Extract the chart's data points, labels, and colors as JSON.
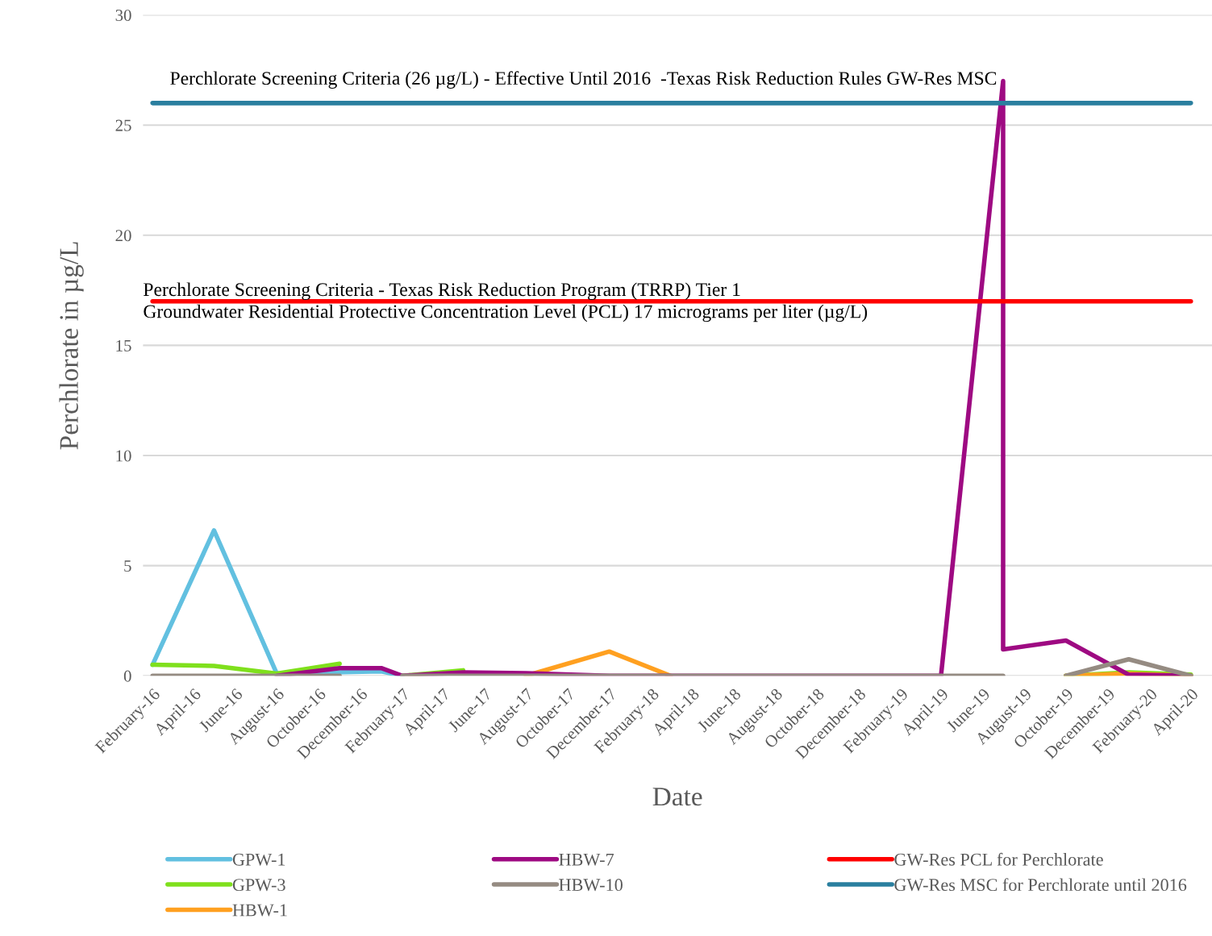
{
  "chart_data": {
    "type": "line",
    "xlabel": "Date",
    "ylabel": "Perchlorate in µg/L",
    "xlim": [
      "2016-01-18",
      "2020-05-02"
    ],
    "ylim": [
      0,
      30
    ],
    "yticks": [
      0,
      5,
      10,
      15,
      20,
      25,
      30
    ],
    "xticks": [
      {
        "value": "2016-02",
        "label": "February-16"
      },
      {
        "value": "2016-04",
        "label": "April-16"
      },
      {
        "value": "2016-06",
        "label": "June-16"
      },
      {
        "value": "2016-08",
        "label": "August-16"
      },
      {
        "value": "2016-10",
        "label": "October-16"
      },
      {
        "value": "2016-12",
        "label": "December-16"
      },
      {
        "value": "2017-02",
        "label": "February-17"
      },
      {
        "value": "2017-04",
        "label": "April-17"
      },
      {
        "value": "2017-06",
        "label": "June-17"
      },
      {
        "value": "2017-08",
        "label": "August-17"
      },
      {
        "value": "2017-10",
        "label": "October-17"
      },
      {
        "value": "2017-12",
        "label": "December-17"
      },
      {
        "value": "2018-02",
        "label": "February-18"
      },
      {
        "value": "2018-04",
        "label": "April-18"
      },
      {
        "value": "2018-06",
        "label": "June-18"
      },
      {
        "value": "2018-08",
        "label": "August-18"
      },
      {
        "value": "2018-10",
        "label": "October-18"
      },
      {
        "value": "2018-12",
        "label": "December-18"
      },
      {
        "value": "2019-02",
        "label": "February-19"
      },
      {
        "value": "2019-04",
        "label": "April-19"
      },
      {
        "value": "2019-06",
        "label": "June-19"
      },
      {
        "value": "2019-08",
        "label": "August-19"
      },
      {
        "value": "2019-10",
        "label": "October-19"
      },
      {
        "value": "2019-12",
        "label": "December-19"
      },
      {
        "value": "2020-02",
        "label": "February-20"
      },
      {
        "value": "2020-04",
        "label": "April-20"
      }
    ],
    "grid": "y",
    "legend": "bottom",
    "marker": "none",
    "line_style": "solid",
    "series": [
      {
        "name": "GPW-1",
        "color": "#62c0e0",
        "x": [
          "2016-02",
          "2016-05",
          "2016-08",
          "2017-01",
          "2017-02"
        ],
        "values": [
          0.5,
          6.6,
          0.1,
          0.2,
          0
        ]
      },
      {
        "name": "GPW-3",
        "color": "#7fe01c",
        "x": [
          "2016-02",
          "2016-05",
          "2016-08",
          "2016-11",
          "2017-01",
          "2017-02",
          "2017-05",
          "2019-09",
          "2019-10",
          "2020-01",
          "2020-04"
        ],
        "values": [
          0.5,
          0.45,
          0.1,
          0.55,
          null,
          0,
          0.25,
          null,
          0,
          0.15,
          0.05
        ]
      },
      {
        "name": "HBW-1",
        "color": "#ffa020",
        "x": [
          "2017-08",
          "2017-12",
          "2018-03",
          "2019-09",
          "2019-10",
          "2020-01",
          "2020-04"
        ],
        "values": [
          0,
          1.1,
          0,
          null,
          0,
          0.1,
          0
        ]
      },
      {
        "name": "HBW-7",
        "color": "#9e0a82",
        "x": [
          "2016-08",
          "2016-11",
          "2017-01",
          "2017-02",
          "2017-05",
          "2017-08",
          "2017-12",
          "2019-04",
          "2019-07",
          "2019-07",
          "2019-10",
          "2020-01",
          "2020-04"
        ],
        "values": [
          0,
          0.35,
          0.35,
          0,
          0.15,
          0.12,
          0,
          0,
          27,
          1.2,
          1.6,
          0.05,
          0
        ]
      },
      {
        "name": "HBW-10",
        "color": "#958b82",
        "x": [
          "2016-02",
          "2016-11",
          "2017-01",
          "2017-02",
          "2019-07",
          "2019-09",
          "2019-10",
          "2020-01",
          "2020-04"
        ],
        "values": [
          0,
          0,
          null,
          0,
          0,
          null,
          0,
          0.75,
          0
        ]
      },
      {
        "name": "GW-Res PCL for Perchlorate",
        "color": "#ff0000",
        "x": [
          "2016-02",
          "2020-04"
        ],
        "values": [
          17,
          17
        ]
      },
      {
        "name": "GW-Res MSC for Perchlorate until 2016",
        "color": "#2a7f9f",
        "x": [
          "2016-02",
          "2020-04"
        ],
        "values": [
          26,
          26
        ]
      }
    ],
    "annotations": [
      "Perchlorate Screening Criteria (26 µg/L) - Effective Until 2016  -Texas Risk Reduction Rules GW-Res MSC",
      "Perchlorate Screening Criteria - Texas Risk Reduction Program (TRRP) Tier 1\nGroundwater Residential Protective Concentration Level (PCL) 17 micrograms per liter (µg/L)"
    ]
  }
}
